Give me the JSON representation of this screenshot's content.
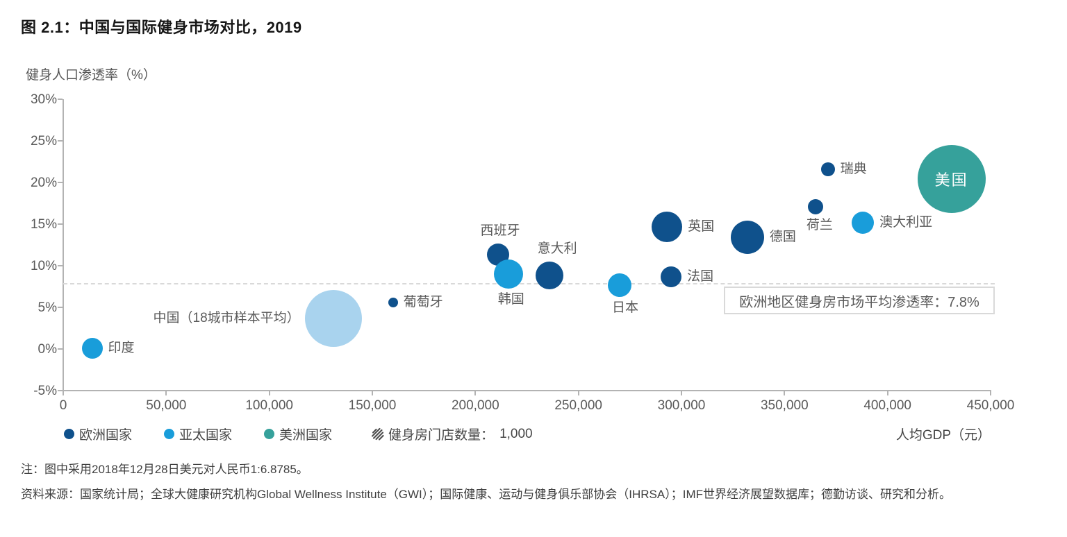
{
  "figure": {
    "title": "图 2.1：中国与国际健身市场对比，2019"
  },
  "chart_data": {
    "type": "scatter",
    "title": "中国与国际健身市场对比，2019",
    "xlabel": "人均GDP（元）",
    "ylabel": "健身人口渗透率（%）",
    "xlim": [
      0,
      450000
    ],
    "ylim": [
      -5,
      30
    ],
    "grid": false,
    "legend_position": "bottom",
    "x_ticks": [
      {
        "value": 0,
        "label": "0"
      },
      {
        "value": 50000,
        "label": "50,000"
      },
      {
        "value": 100000,
        "label": "100,000"
      },
      {
        "value": 150000,
        "label": "150,000"
      },
      {
        "value": 200000,
        "label": "200,000"
      },
      {
        "value": 250000,
        "label": "250,000"
      },
      {
        "value": 300000,
        "label": "300,000"
      },
      {
        "value": 350000,
        "label": "350,000"
      },
      {
        "value": 400000,
        "label": "400,000"
      },
      {
        "value": 450000,
        "label": "450,000"
      }
    ],
    "y_ticks": [
      {
        "value": 30,
        "label": "30%"
      },
      {
        "value": 25,
        "label": "25%"
      },
      {
        "value": 20,
        "label": "20%"
      },
      {
        "value": 15,
        "label": "15%"
      },
      {
        "value": 10,
        "label": "10%"
      },
      {
        "value": 5,
        "label": "5%"
      },
      {
        "value": 0,
        "label": "0%"
      },
      {
        "value": -5,
        "label": "-5%"
      }
    ],
    "average_line": {
      "value": 7.8,
      "label": "欧洲地区健身房市场平均渗透率：7.8%",
      "style": "dashed"
    },
    "series": [
      {
        "id": "india",
        "label": "印度",
        "region": "亚太国家",
        "x": 14000,
        "y": 0.1,
        "radius_px": 15,
        "color": "#199dda",
        "label_pos": "right"
      },
      {
        "id": "china",
        "label": "中国（18城市样本平均）",
        "region": "亚太国家",
        "x": 131000,
        "y": 3.7,
        "radius_px": 41,
        "color": "#a9d3ee",
        "label_pos": "left"
      },
      {
        "id": "portugal",
        "label": "葡萄牙",
        "region": "欧洲国家",
        "x": 160000,
        "y": 5.6,
        "radius_px": 7,
        "color": "#0f518c",
        "label_pos": "right"
      },
      {
        "id": "spain",
        "label": "西班牙",
        "region": "欧洲国家",
        "x": 211000,
        "y": 11.3,
        "radius_px": 16,
        "color": "#0f518c",
        "label_pos": "above",
        "label_dx": 3
      },
      {
        "id": "south-korea",
        "label": "韩国",
        "region": "亚太国家",
        "x": 216000,
        "y": 9.0,
        "radius_px": 21,
        "color": "#199dda",
        "label_pos": "below",
        "label_dx": 4
      },
      {
        "id": "italy",
        "label": "意大利",
        "region": "欧洲国家",
        "x": 236000,
        "y": 8.8,
        "radius_px": 20,
        "color": "#0f518c",
        "label_pos": "above",
        "label_dx": 11
      },
      {
        "id": "japan",
        "label": "日本",
        "region": "亚太国家",
        "x": 270000,
        "y": 7.7,
        "radius_px": 17,
        "color": "#199dda",
        "label_pos": "below",
        "label_dx": 8
      },
      {
        "id": "uk",
        "label": "英国",
        "region": "欧洲国家",
        "x": 293000,
        "y": 14.7,
        "radius_px": 22,
        "color": "#0f518c",
        "label_pos": "right"
      },
      {
        "id": "france",
        "label": "法国",
        "region": "欧洲国家",
        "x": 295000,
        "y": 8.7,
        "radius_px": 15,
        "color": "#0f518c",
        "label_pos": "right"
      },
      {
        "id": "germany",
        "label": "德国",
        "region": "欧洲国家",
        "x": 332000,
        "y": 13.4,
        "radius_px": 24,
        "color": "#0f518c",
        "label_pos": "right"
      },
      {
        "id": "netherlands",
        "label": "荷兰",
        "region": "欧洲国家",
        "x": 365000,
        "y": 17.1,
        "radius_px": 11,
        "color": "#0f518c",
        "label_pos": "below",
        "label_dx": 6
      },
      {
        "id": "sweden",
        "label": "瑞典",
        "region": "欧洲国家",
        "x": 371000,
        "y": 21.6,
        "radius_px": 10,
        "color": "#0f518c",
        "label_pos": "right"
      },
      {
        "id": "australia",
        "label": "澳大利亚",
        "region": "亚太国家",
        "x": 388000,
        "y": 15.2,
        "radius_px": 16,
        "color": "#199dda",
        "label_pos": "right"
      },
      {
        "id": "usa",
        "label": "美国",
        "region": "美洲国家",
        "x": 431000,
        "y": 20.4,
        "radius_px": 49,
        "color": "#36a19b",
        "label_pos": "inside"
      }
    ]
  },
  "legend": {
    "items": [
      {
        "label": "欧洲国家",
        "color": "#0f518c"
      },
      {
        "label": "亚太国家",
        "color": "#199dda"
      },
      {
        "label": "美洲国家",
        "color": "#36a19b"
      }
    ],
    "size_item": {
      "icon": "hatched-circle-icon",
      "label": "健身房门店数量：",
      "value": "1,000"
    }
  },
  "colors": {
    "europe": "#0f518c",
    "asia_pacific": "#199dda",
    "americas": "#36a19b",
    "china_highlight": "#a9d3ee",
    "axis": "#b3b3b3",
    "dashed_line": "#d9d9d9",
    "label_text": "#595959"
  },
  "notes": {
    "note1": "注：图中采用2018年12月28日美元对人民币1:6.8785。",
    "source": "资料来源：国家统计局；全球大健康研究机构Global Wellness Institute（GWI）；国际健康、运动与健身俱乐部协会（IHRSA）；IMF世界经济展望数据库；德勤访谈、研究和分析。"
  }
}
